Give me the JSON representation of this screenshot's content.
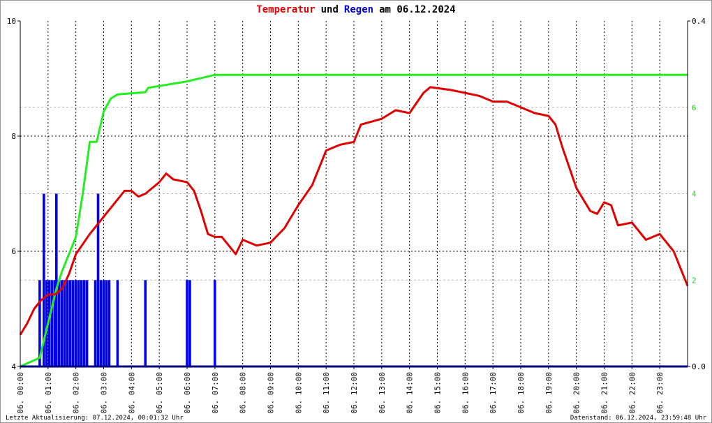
{
  "chart_data": {
    "type": "line",
    "title_parts": [
      {
        "text": "Temperatur",
        "color": "#e00000"
      },
      {
        "text": "und",
        "color": "#000000"
      },
      {
        "text": "Regen",
        "color": "#0000cc"
      },
      {
        "text": "am 06.12.2024",
        "color": "#000000"
      }
    ],
    "footer_left": "Letzte Aktualisierung: 07.12.2024, 00:01:32 Uhr",
    "footer_right": "Datenstand: 06.12.2024, 23:59:48 Uhr",
    "xlim": [
      0,
      24
    ],
    "xticks": [
      {
        "value": 0,
        "label": "06. 00:00"
      },
      {
        "value": 1,
        "label": "06. 01:00"
      },
      {
        "value": 2,
        "label": "06. 02:00"
      },
      {
        "value": 3,
        "label": "06. 03:00"
      },
      {
        "value": 4,
        "label": "06. 04:00"
      },
      {
        "value": 5,
        "label": "06. 05:00"
      },
      {
        "value": 6,
        "label": "06. 06:00"
      },
      {
        "value": 7,
        "label": "06. 07:00"
      },
      {
        "value": 8,
        "label": "06. 08:00"
      },
      {
        "value": 9,
        "label": "06. 09:00"
      },
      {
        "value": 10,
        "label": "06. 10:00"
      },
      {
        "value": 11,
        "label": "06. 11:00"
      },
      {
        "value": 12,
        "label": "06. 12:00"
      },
      {
        "value": 13,
        "label": "06. 13:00"
      },
      {
        "value": 14,
        "label": "06. 14:00"
      },
      {
        "value": 15,
        "label": "06. 15:00"
      },
      {
        "value": 16,
        "label": "06. 16:00"
      },
      {
        "value": 17,
        "label": "06. 17:00"
      },
      {
        "value": 18,
        "label": "06. 18:00"
      },
      {
        "value": 19,
        "label": "06. 19:00"
      },
      {
        "value": 20,
        "label": "06. 20:00"
      },
      {
        "value": 21,
        "label": "06. 21:00"
      },
      {
        "value": 22,
        "label": "06. 22:00"
      },
      {
        "value": 23,
        "label": "06. 23:00"
      }
    ],
    "ylim": [
      4,
      10
    ],
    "yticks": [
      4,
      6,
      8,
      10
    ],
    "y2lim": [
      0,
      0.4
    ],
    "y2ticks": [
      {
        "value": 0,
        "label": "0.0"
      },
      {
        "value": 0.4,
        "label": "0.4"
      }
    ],
    "y3lim": [
      0,
      8
    ],
    "y3ticks": [
      2,
      4,
      6
    ],
    "y3color": "#22cc22",
    "grid": true,
    "series": [
      {
        "type": "bar",
        "axis": "y2",
        "color": "#0000ff",
        "x": [
          0.7,
          0.85,
          0.95,
          1.05,
          1.15,
          1.25,
          1.3,
          1.4,
          1.5,
          1.6,
          1.7,
          1.8,
          1.9,
          2.0,
          2.1,
          2.2,
          2.3,
          2.4,
          2.7,
          2.8,
          2.9,
          3.0,
          3.1,
          3.2,
          3.5,
          4.5,
          6.0,
          6.1,
          7.0
        ],
        "values": [
          0.1,
          0.2,
          0.1,
          0.1,
          0.1,
          0.1,
          0.2,
          0.1,
          0.1,
          0.1,
          0.1,
          0.1,
          0.1,
          0.1,
          0.1,
          0.1,
          0.1,
          0.1,
          0.1,
          0.2,
          0.1,
          0.1,
          0.1,
          0.1,
          0.1,
          0.1,
          0.1,
          0.1,
          0.1
        ]
      },
      {
        "type": "line",
        "axis": "y3",
        "color": "#22ee22",
        "x": [
          0,
          0.7,
          1.0,
          1.3,
          1.5,
          2.0,
          2.25,
          2.5,
          2.75,
          3.0,
          3.25,
          3.5,
          4.5,
          4.6,
          6.0,
          7.0,
          24
        ],
        "values": [
          0,
          0.2,
          1.0,
          1.8,
          2.2,
          3.0,
          4.0,
          5.2,
          5.2,
          5.9,
          6.2,
          6.3,
          6.35,
          6.45,
          6.6,
          6.75,
          6.75
        ]
      },
      {
        "type": "line",
        "axis": "y",
        "color": "#e00000",
        "x": [
          0,
          0.25,
          0.5,
          0.75,
          1.0,
          1.25,
          1.5,
          1.75,
          2.0,
          2.5,
          3.0,
          3.5,
          3.75,
          4.0,
          4.25,
          4.5,
          5.0,
          5.25,
          5.5,
          6.0,
          6.25,
          6.5,
          6.75,
          7.0,
          7.25,
          7.5,
          7.75,
          8.0,
          8.5,
          9.0,
          9.5,
          10.0,
          10.5,
          11.0,
          11.5,
          12.0,
          12.25,
          13.0,
          13.5,
          14.0,
          14.5,
          14.75,
          15.5,
          16.0,
          16.5,
          17.0,
          17.5,
          18.0,
          18.5,
          19.0,
          19.25,
          19.5,
          20.0,
          20.5,
          20.75,
          21.0,
          21.25,
          21.5,
          22.0,
          22.5,
          23.0,
          23.5,
          24.0
        ],
        "values": [
          4.55,
          4.75,
          5.0,
          5.15,
          5.25,
          5.25,
          5.35,
          5.6,
          5.95,
          6.3,
          6.6,
          6.9,
          7.05,
          7.05,
          6.95,
          7.0,
          7.2,
          7.35,
          7.25,
          7.2,
          7.05,
          6.7,
          6.3,
          6.25,
          6.25,
          6.1,
          5.95,
          6.2,
          6.1,
          6.15,
          6.4,
          6.8,
          7.15,
          7.75,
          7.85,
          7.9,
          8.2,
          8.3,
          8.45,
          8.4,
          8.75,
          8.85,
          8.8,
          8.75,
          8.7,
          8.6,
          8.6,
          8.5,
          8.4,
          8.35,
          8.2,
          7.8,
          7.1,
          6.7,
          6.65,
          6.85,
          6.8,
          6.45,
          6.5,
          6.2,
          6.3,
          6.0,
          5.4
        ]
      }
    ]
  }
}
